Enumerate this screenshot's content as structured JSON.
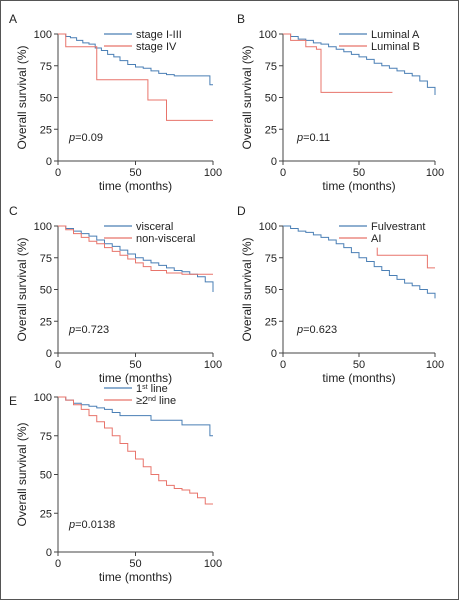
{
  "figure": {
    "border_color": "#555555"
  },
  "chart_data": [
    {
      "type": "line",
      "panel_label": "A",
      "ylabel": "Overall survival (%)",
      "xlabel": "time (months)",
      "xlim": [
        0,
        100
      ],
      "ylim": [
        0,
        100
      ],
      "xticks": [
        0,
        50,
        100
      ],
      "yticks": [
        0,
        25,
        50,
        75,
        100
      ],
      "grid": false,
      "legend_position": "top-right",
      "p_prefix": "p",
      "p_value": "=0.09",
      "series": [
        {
          "name": "stage I-III",
          "color": "#4a7fb5",
          "x": [
            0,
            5,
            8,
            12,
            16,
            20,
            24,
            28,
            32,
            36,
            40,
            45,
            50,
            55,
            60,
            65,
            70,
            75,
            90,
            98,
            100
          ],
          "y": [
            100,
            98,
            97,
            95,
            93,
            92,
            89,
            87,
            84,
            82,
            79,
            76,
            74,
            73,
            71,
            69,
            68,
            67,
            67,
            60,
            60
          ]
        },
        {
          "name": "stage IV",
          "color": "#e8746b",
          "x": [
            0,
            5,
            13,
            25,
            58,
            70,
            100
          ],
          "y": [
            100,
            90,
            90,
            64,
            48,
            32,
            32
          ]
        }
      ]
    },
    {
      "type": "line",
      "panel_label": "B",
      "ylabel": "Overall survival (%)",
      "xlabel": "time (months)",
      "xlim": [
        0,
        100
      ],
      "ylim": [
        0,
        100
      ],
      "xticks": [
        0,
        50,
        100
      ],
      "yticks": [
        0,
        25,
        50,
        75,
        100
      ],
      "grid": false,
      "legend_position": "top-right",
      "p_prefix": "p",
      "p_value": "=0.11",
      "series": [
        {
          "name": "Luminal A",
          "color": "#4a7fb5",
          "x": [
            0,
            5,
            10,
            15,
            20,
            25,
            30,
            35,
            40,
            45,
            50,
            55,
            60,
            65,
            70,
            75,
            80,
            85,
            90,
            95,
            100
          ],
          "y": [
            100,
            98,
            96,
            95,
            93,
            92,
            90,
            88,
            86,
            84,
            82,
            80,
            77,
            75,
            73,
            71,
            69,
            67,
            63,
            58,
            52
          ]
        },
        {
          "name": "Luminal B",
          "color": "#e8746b",
          "x": [
            0,
            5,
            15,
            22,
            25,
            72
          ],
          "y": [
            100,
            95,
            90,
            88,
            54,
            54
          ]
        }
      ]
    },
    {
      "type": "line",
      "panel_label": "C",
      "ylabel": "Overall survival (%)",
      "xlabel": "time (months)",
      "xlim": [
        0,
        100
      ],
      "ylim": [
        0,
        100
      ],
      "xticks": [
        0,
        50,
        100
      ],
      "yticks": [
        0,
        25,
        50,
        75,
        100
      ],
      "grid": false,
      "legend_position": "top-right",
      "p_prefix": "p",
      "p_value": "=0.723",
      "series": [
        {
          "name": "visceral",
          "color": "#4a7fb5",
          "x": [
            0,
            5,
            10,
            15,
            20,
            25,
            30,
            35,
            40,
            45,
            50,
            55,
            60,
            65,
            70,
            75,
            80,
            85,
            90,
            95,
            100
          ],
          "y": [
            100,
            98,
            96,
            94,
            92,
            89,
            86,
            84,
            81,
            78,
            75,
            73,
            71,
            69,
            67,
            65,
            64,
            62,
            60,
            56,
            48
          ]
        },
        {
          "name": "non-visceral",
          "color": "#e8746b",
          "x": [
            0,
            5,
            10,
            15,
            20,
            25,
            30,
            35,
            40,
            45,
            50,
            55,
            60,
            70,
            80,
            100
          ],
          "y": [
            100,
            97,
            94,
            91,
            88,
            86,
            83,
            80,
            77,
            74,
            71,
            68,
            65,
            63,
            62,
            62
          ]
        }
      ]
    },
    {
      "type": "line",
      "panel_label": "D",
      "ylabel": "Overall survival (%)",
      "xlabel": "time (months)",
      "xlim": [
        0,
        100
      ],
      "ylim": [
        0,
        100
      ],
      "xticks": [
        0,
        50,
        100
      ],
      "yticks": [
        0,
        25,
        50,
        75,
        100
      ],
      "grid": false,
      "legend_position": "top-right",
      "p_prefix": "p",
      "p_value": "=0.623",
      "series": [
        {
          "name": "Fulvestrant",
          "color": "#4a7fb5",
          "x": [
            0,
            5,
            10,
            15,
            20,
            25,
            30,
            35,
            40,
            45,
            50,
            55,
            60,
            65,
            70,
            75,
            80,
            85,
            90,
            95,
            100
          ],
          "y": [
            100,
            98,
            96,
            95,
            93,
            91,
            89,
            86,
            83,
            79,
            75,
            72,
            68,
            65,
            61,
            58,
            55,
            53,
            50,
            47,
            43
          ]
        },
        {
          "name": "AI",
          "color": "#e8746b",
          "x": [
            62,
            62,
            95,
            95,
            100
          ],
          "y": [
            83,
            77,
            77,
            67,
            67
          ]
        }
      ]
    },
    {
      "type": "line",
      "panel_label": "E",
      "ylabel": "Overall survival (%)",
      "xlabel": "time (months)",
      "xlim": [
        0,
        100
      ],
      "ylim": [
        0,
        100
      ],
      "xticks": [
        0,
        50,
        100
      ],
      "yticks": [
        0,
        25,
        50,
        75,
        100
      ],
      "grid": false,
      "legend_position": "top-right",
      "p_prefix": "p",
      "p_value": "=0.0138",
      "series": [
        {
          "name": "1st line",
          "name_prefix": "1",
          "name_sup": "st",
          "name_suffix": " line",
          "color": "#4a7fb5",
          "x": [
            0,
            5,
            10,
            15,
            20,
            25,
            30,
            35,
            40,
            60,
            80,
            98,
            100
          ],
          "y": [
            100,
            98,
            96,
            95,
            94,
            93,
            92,
            90,
            88,
            85,
            82,
            75,
            75
          ]
        },
        {
          "name": "≥2nd line",
          "name_prefix": "≥2",
          "name_sup": "nd",
          "name_suffix": " line",
          "color": "#e8746b",
          "x": [
            0,
            5,
            10,
            15,
            20,
            25,
            30,
            35,
            40,
            45,
            50,
            55,
            60,
            65,
            70,
            75,
            80,
            85,
            90,
            95,
            100
          ],
          "y": [
            100,
            98,
            95,
            92,
            88,
            84,
            80,
            75,
            70,
            65,
            60,
            55,
            50,
            46,
            43,
            41,
            40,
            38,
            35,
            31,
            31
          ]
        }
      ]
    }
  ]
}
